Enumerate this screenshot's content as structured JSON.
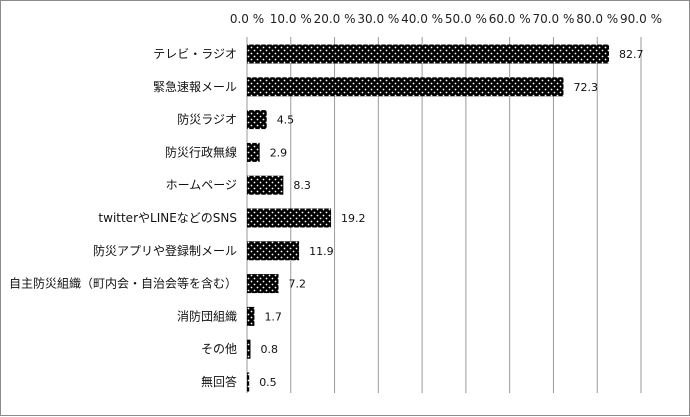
{
  "chart_data": {
    "type": "bar",
    "orientation": "horizontal",
    "x_ticks": [
      "0.0 %",
      "10.0 %",
      "20.0 %",
      "30.0 %",
      "40.0 %",
      "50.0 %",
      "60.0 %",
      "70.0 %",
      "80.0 %",
      "90.0 %"
    ],
    "xlim": [
      0,
      90
    ],
    "tick_position": "top",
    "grid": "vertical",
    "categories": [
      "テレビ・ラジオ",
      "緊急速報メール",
      "防災ラジオ",
      "防災行政無線",
      "ホームページ",
      "twitterやLINEなどのSNS",
      "防災アプリや登録制メール",
      "自主防災組織（町内会・自治会等を含む）",
      "消防団組織",
      "その他",
      "無回答"
    ],
    "values": [
      82.7,
      72.3,
      4.5,
      2.9,
      8.3,
      19.2,
      11.9,
      7.2,
      1.7,
      0.8,
      0.5
    ],
    "value_labels": [
      "82.7",
      "72.3",
      "4.5",
      "2.9",
      "8.3",
      "19.2",
      "11.9",
      "7.2",
      "1.7",
      "0.8",
      "0.5"
    ],
    "bar_fill": "#000000",
    "bar_pattern": "white dots",
    "gridline_color": "#9a9a9a"
  }
}
